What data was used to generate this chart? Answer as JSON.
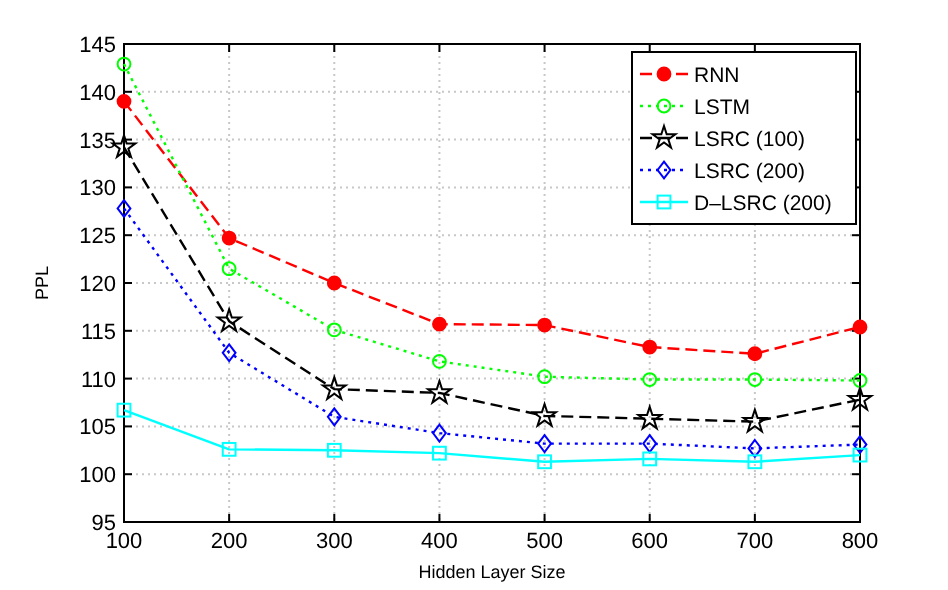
{
  "chart_data": {
    "type": "line",
    "xlabel": "Hidden Layer Size",
    "ylabel": "PPL",
    "x": [
      100,
      200,
      300,
      400,
      500,
      600,
      700,
      800
    ],
    "xlim": [
      100,
      800
    ],
    "xticks": [
      100,
      200,
      300,
      400,
      500,
      600,
      700,
      800
    ],
    "ylim": [
      95,
      145
    ],
    "yticks": [
      95,
      100,
      105,
      110,
      115,
      120,
      125,
      130,
      135,
      140,
      145
    ],
    "grid": true,
    "legend": "top right",
    "series": [
      {
        "name": "RNN",
        "color": "#ff0000",
        "marker": "circle",
        "line_style": "dashed",
        "values": [
          139.0,
          124.7,
          120.0,
          115.7,
          115.6,
          113.3,
          112.6,
          115.4
        ]
      },
      {
        "name": "LSTM",
        "color": "#00ff00",
        "marker": "circle",
        "line_style": "dotted",
        "values": [
          142.9,
          121.5,
          115.1,
          111.8,
          110.2,
          109.9,
          109.9,
          109.8
        ]
      },
      {
        "name": "LSRC (100)",
        "color": "#000000",
        "marker": "star",
        "line_style": "dashed",
        "values": [
          134.2,
          116.0,
          108.9,
          108.5,
          106.1,
          105.8,
          105.5,
          107.8
        ]
      },
      {
        "name": "LSRC (200)",
        "color": "#0000ff",
        "marker": "diamond",
        "line_style": "dotted",
        "values": [
          127.8,
          112.7,
          106.0,
          104.3,
          103.2,
          103.2,
          102.7,
          103.1
        ]
      },
      {
        "name": "D–LSRC (200)",
        "color": "#00ffff",
        "marker": "square",
        "line_style": "solid",
        "values": [
          106.7,
          102.6,
          102.5,
          102.2,
          101.3,
          101.6,
          101.3,
          102.0
        ]
      }
    ]
  }
}
